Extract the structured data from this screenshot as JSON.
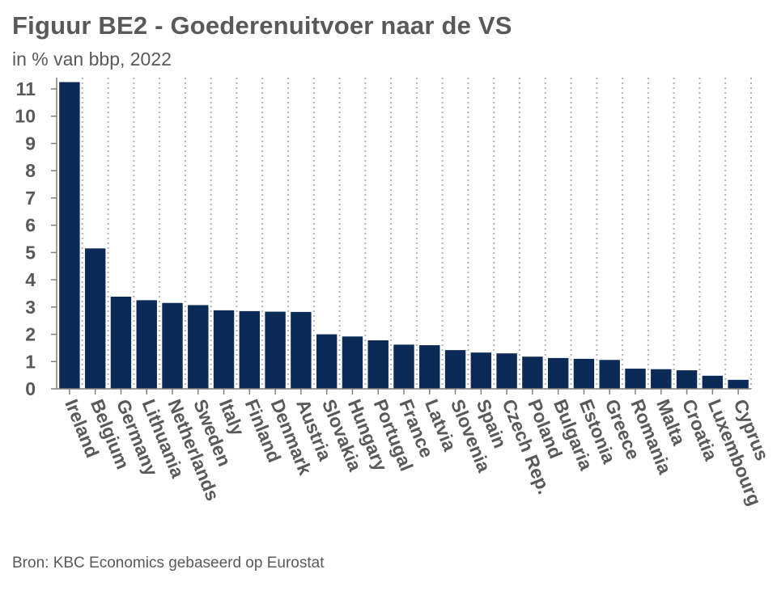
{
  "title": "Figuur BE2 - Goederenuitvoer naar de VS",
  "subtitle": "in % van bbp, 2022",
  "source": "Bron: KBC Economics gebaseerd op Eurostat",
  "colors": {
    "bar": "#0b2a55",
    "text": "#595959",
    "grid": "#b3b3b3"
  },
  "chart_data": {
    "type": "bar",
    "title": "Figuur BE2 - Goederenuitvoer naar de VS",
    "subtitle": "in % van bbp, 2022",
    "xlabel": "",
    "ylabel": "",
    "ylim": [
      0,
      11
    ],
    "yticks": [
      0,
      1,
      2,
      3,
      4,
      5,
      6,
      7,
      8,
      9,
      10,
      11
    ],
    "grid": "vertical-dotted",
    "categories": [
      "Ireland",
      "Belgium",
      "Germany",
      "Lithuania",
      "Netherlands",
      "Sweden",
      "Italy",
      "Finland",
      "Denmark",
      "Austria",
      "Slovakia",
      "Hungary",
      "Portugal",
      "France",
      "Latvia",
      "Slovenia",
      "Spain",
      "Czech Rep.",
      "Poland",
      "Bulgaria",
      "Estonia",
      "Greece",
      "Romania",
      "Malta",
      "Croatia",
      "Luxembourg",
      "Cyprus"
    ],
    "values": [
      11.25,
      5.15,
      3.38,
      3.25,
      3.15,
      3.07,
      2.88,
      2.85,
      2.83,
      2.82,
      2.0,
      1.92,
      1.78,
      1.62,
      1.6,
      1.42,
      1.33,
      1.3,
      1.18,
      1.13,
      1.1,
      1.06,
      0.74,
      0.72,
      0.68,
      0.48,
      0.33
    ]
  }
}
